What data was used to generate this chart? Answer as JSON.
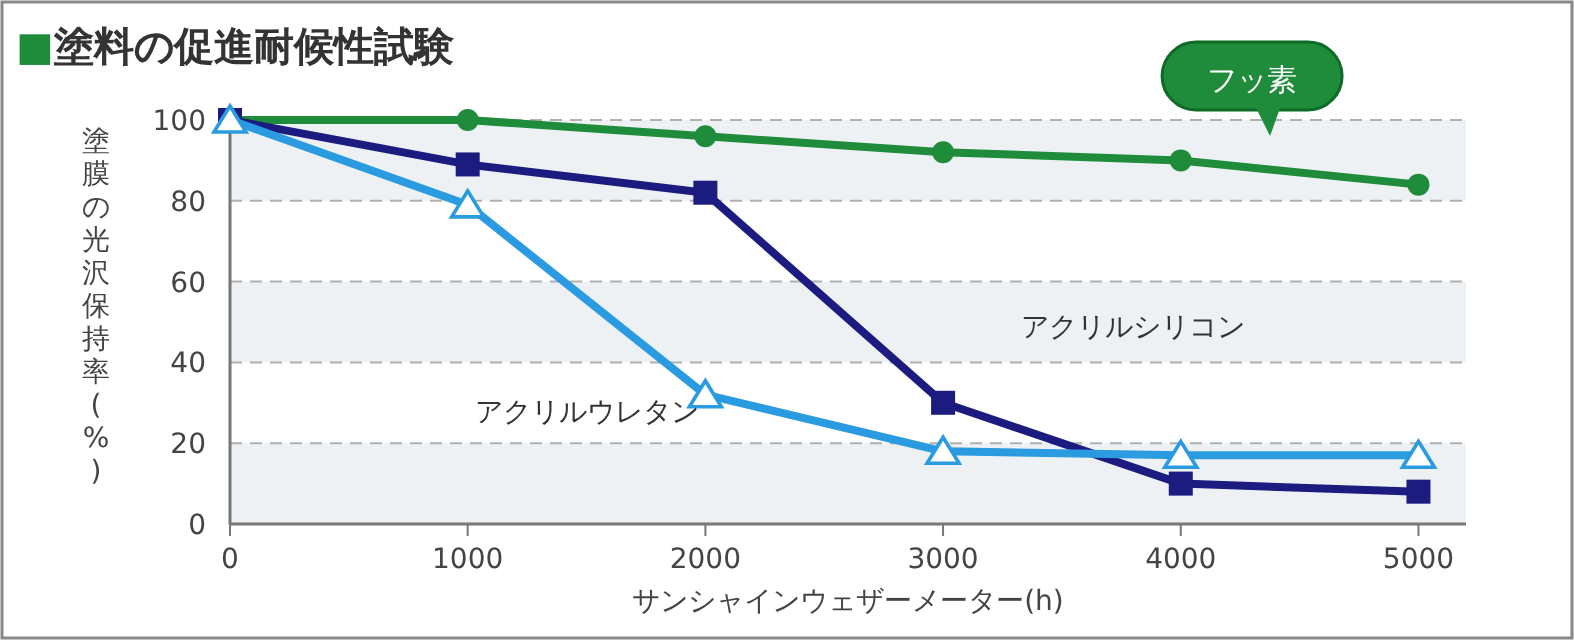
{
  "chart_data": {
    "type": "line",
    "title": "■塗料の促進耐候性試験",
    "xlabel": "サンシャインウェザーメーター(h)",
    "ylabel": "塗膜の光沢保持率(%)",
    "x": [
      0,
      1000,
      2000,
      3000,
      4000,
      5000
    ],
    "series": [
      {
        "name": "フッ素",
        "color": "#1e8c3a",
        "marker": "circle",
        "values": [
          100,
          100,
          96,
          92,
          90,
          84
        ]
      },
      {
        "name": "アクリルシリコン",
        "color": "#1c1c80",
        "marker": "square",
        "values": [
          100,
          89,
          82,
          30,
          10,
          8
        ]
      },
      {
        "name": "アクリルウレタン",
        "color": "#2a9be0",
        "marker": "triangle",
        "values": [
          100,
          79,
          32,
          18,
          17,
          17
        ]
      }
    ],
    "xlim": [
      0,
      5200
    ],
    "ylim": [
      0,
      100
    ],
    "xticks": [
      0,
      1000,
      2000,
      3000,
      4000,
      5000
    ],
    "yticks": [
      0,
      20,
      40,
      60,
      80,
      100
    ],
    "grid": "y",
    "legend": false,
    "line_style": "solid",
    "bands": [
      {
        "axis": "y",
        "from": 80,
        "to": 100,
        "color": "#edf1f4"
      },
      {
        "axis": "y",
        "from": 40,
        "to": 60,
        "color": "#edf1f4"
      },
      {
        "axis": "y",
        "from": 0,
        "to": 20,
        "color": "#edf1f4"
      }
    ]
  }
}
